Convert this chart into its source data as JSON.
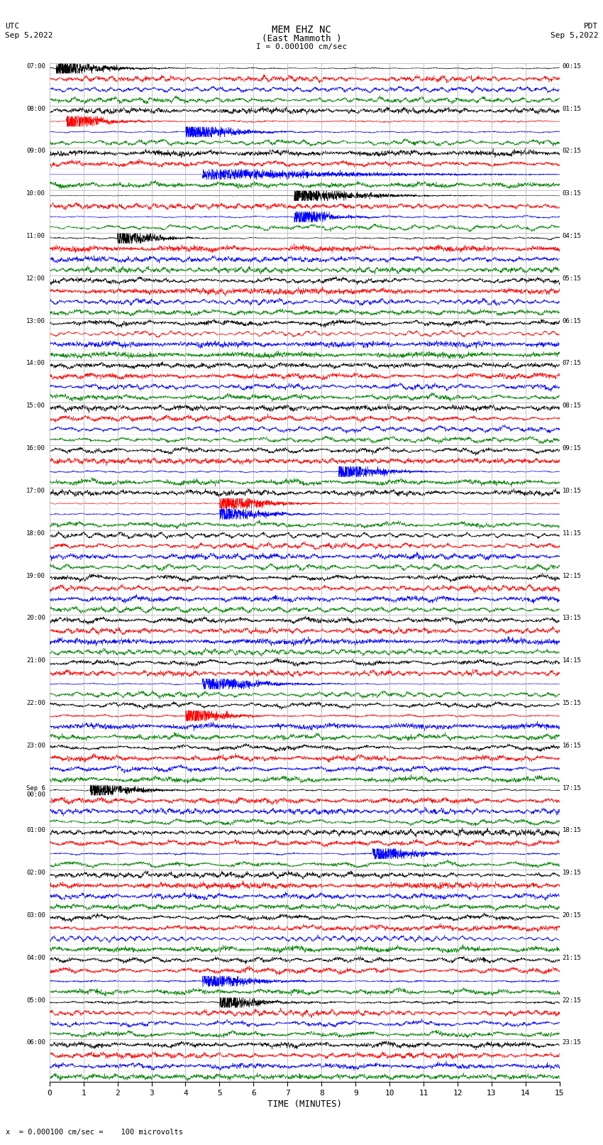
{
  "title_line1": "MEM EHZ NC",
  "title_line2": "(East Mammoth )",
  "scale_label": "I = 0.000100 cm/sec",
  "left_header": "UTC\nSep 5,2022",
  "right_header": "PDT\nSep 5,2022",
  "bottom_note": "x  = 0.000100 cm/sec =    100 microvolts",
  "xlabel": "TIME (MINUTES)",
  "left_times": [
    "07:00",
    "08:00",
    "09:00",
    "10:00",
    "11:00",
    "12:00",
    "13:00",
    "14:00",
    "15:00",
    "16:00",
    "17:00",
    "18:00",
    "19:00",
    "20:00",
    "21:00",
    "22:00",
    "23:00",
    "Sep 6\n00:00",
    "01:00",
    "02:00",
    "03:00",
    "04:00",
    "05:00",
    "06:00"
  ],
  "right_times": [
    "00:15",
    "01:15",
    "02:15",
    "03:15",
    "04:15",
    "05:15",
    "06:15",
    "07:15",
    "08:15",
    "09:15",
    "10:15",
    "11:15",
    "12:15",
    "13:15",
    "14:15",
    "15:15",
    "16:15",
    "17:15",
    "18:15",
    "19:15",
    "20:15",
    "21:15",
    "22:15",
    "23:15"
  ],
  "n_rows": 24,
  "traces_per_row": 4,
  "colors": [
    "black",
    "red",
    "blue",
    "green"
  ],
  "bg_color": "white",
  "grid_color": "#aaaaaa",
  "fig_width": 8.5,
  "fig_height": 16.13,
  "xmin": 0,
  "xmax": 15,
  "xticks": [
    0,
    1,
    2,
    3,
    4,
    5,
    6,
    7,
    8,
    9,
    10,
    11,
    12,
    13,
    14,
    15
  ]
}
